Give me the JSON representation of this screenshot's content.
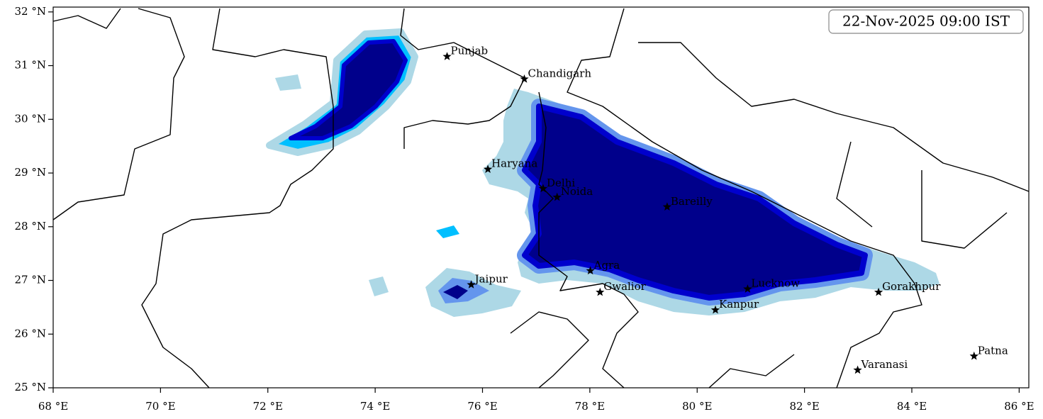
{
  "map": {
    "title": "22-Nov-2025 09:00 IST",
    "xlim": [
      68,
      86.18
    ],
    "ylim": [
      25,
      32.09
    ],
    "xticks": [
      {
        "value": 68,
        "label": "68 °E"
      },
      {
        "value": 70,
        "label": "70 °E"
      },
      {
        "value": 72,
        "label": "72 °E"
      },
      {
        "value": 74,
        "label": "74 °E"
      },
      {
        "value": 76,
        "label": "76 °E"
      },
      {
        "value": 78,
        "label": "78 °E"
      },
      {
        "value": 80,
        "label": "80 °E"
      },
      {
        "value": 82,
        "label": "82 °E"
      },
      {
        "value": 84,
        "label": "84 °E"
      },
      {
        "value": 86,
        "label": "86 °E"
      }
    ],
    "yticks": [
      {
        "value": 25,
        "label": "25 °N"
      },
      {
        "value": 26,
        "label": "26 °N"
      },
      {
        "value": 27,
        "label": "27 °N"
      },
      {
        "value": 28,
        "label": "28 °N"
      },
      {
        "value": 29,
        "label": "29 °N"
      },
      {
        "value": 30,
        "label": "30 °N"
      },
      {
        "value": 31,
        "label": "31 °N"
      },
      {
        "value": 32,
        "label": "32 °N"
      }
    ],
    "cities": [
      {
        "name": "Punjab",
        "lon": 75.34,
        "lat": 31.17
      },
      {
        "name": "Chandigarh",
        "lon": 76.78,
        "lat": 30.75
      },
      {
        "name": "Haryana",
        "lon": 76.1,
        "lat": 29.07
      },
      {
        "name": "Delhi",
        "lon": 77.13,
        "lat": 28.71
      },
      {
        "name": "Noida",
        "lon": 77.39,
        "lat": 28.55
      },
      {
        "name": "Bareilly",
        "lon": 79.44,
        "lat": 28.37
      },
      {
        "name": "Agra",
        "lon": 78.01,
        "lat": 27.18
      },
      {
        "name": "Jaipur",
        "lon": 75.79,
        "lat": 26.92
      },
      {
        "name": "Gwalior",
        "lon": 78.19,
        "lat": 26.78
      },
      {
        "name": "Lucknow",
        "lon": 80.94,
        "lat": 26.84
      },
      {
        "name": "Kanpur",
        "lon": 80.34,
        "lat": 26.45
      },
      {
        "name": "Gorakhpur",
        "lon": 83.38,
        "lat": 26.78
      },
      {
        "name": "Varanasi",
        "lon": 82.99,
        "lat": 25.33
      },
      {
        "name": "Patna",
        "lon": 85.16,
        "lat": 25.59
      }
    ]
  }
}
